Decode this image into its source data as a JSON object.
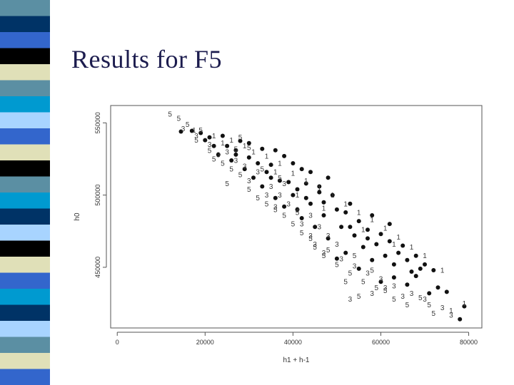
{
  "slide": {
    "title": "Results for F5"
  },
  "colors": {
    "title": "#1c1c4e",
    "stripes": [
      "#5b8fa3",
      "#003366",
      "#3366cc",
      "#000000",
      "#e0e0b8",
      "#009ad0",
      "#a8d4ff"
    ]
  },
  "chart_data": {
    "type": "scatter",
    "title": "",
    "xlabel": "h1 + h-1",
    "ylabel": "h0",
    "xlim": [
      -1500,
      83000
    ],
    "ylim": [
      408000,
      562000
    ],
    "x_ticks": [
      0,
      20000,
      40000,
      60000,
      80000
    ],
    "x_tick_labels": [
      "0",
      "20000",
      "40000",
      "60000",
      "80000"
    ],
    "y_ticks": [
      450000,
      500000,
      550000
    ],
    "y_tick_labels": [
      "450000",
      "500000",
      "550000"
    ],
    "grid": false,
    "legend": "none",
    "series": [
      {
        "marker": "filled-circle",
        "points": [
          [
            14500,
            544000
          ],
          [
            17000,
            544500
          ],
          [
            19000,
            543000
          ],
          [
            21000,
            540000
          ],
          [
            24000,
            541000
          ],
          [
            28000,
            537500
          ],
          [
            27000,
            531000
          ],
          [
            30000,
            536000
          ],
          [
            33000,
            532000
          ],
          [
            36000,
            531000
          ],
          [
            38000,
            527000
          ],
          [
            35000,
            521000
          ],
          [
            40000,
            522000
          ],
          [
            42000,
            518000
          ],
          [
            44000,
            516000
          ],
          [
            48000,
            512000
          ],
          [
            46000,
            506000
          ],
          [
            39000,
            509000
          ],
          [
            41000,
            504000
          ],
          [
            43000,
            498000
          ],
          [
            47000,
            495000
          ],
          [
            50000,
            490000
          ],
          [
            52000,
            488000
          ],
          [
            55000,
            482000
          ],
          [
            53000,
            478000
          ],
          [
            57000,
            476000
          ],
          [
            60000,
            473000
          ],
          [
            62000,
            468000
          ],
          [
            65000,
            465000
          ],
          [
            68000,
            458000
          ],
          [
            70000,
            452000
          ],
          [
            67000,
            447000
          ],
          [
            63000,
            443000
          ],
          [
            58000,
            455000
          ],
          [
            52000,
            460000
          ],
          [
            56000,
            464000
          ],
          [
            61000,
            458000
          ],
          [
            66000,
            455000
          ],
          [
            72000,
            448000
          ],
          [
            48000,
            470000
          ],
          [
            45000,
            478000
          ],
          [
            42000,
            484000
          ],
          [
            38000,
            492000
          ],
          [
            36000,
            498000
          ],
          [
            33000,
            506000
          ],
          [
            31000,
            512000
          ],
          [
            29000,
            518000
          ],
          [
            26000,
            524000
          ],
          [
            23000,
            528000
          ],
          [
            22000,
            534000
          ],
          [
            20000,
            538000
          ],
          [
            34000,
            516000
          ],
          [
            37000,
            510000
          ],
          [
            44000,
            494000
          ],
          [
            47000,
            486000
          ],
          [
            51000,
            478000
          ],
          [
            54000,
            472000
          ],
          [
            59000,
            466000
          ],
          [
            64000,
            460000
          ],
          [
            69000,
            449000
          ],
          [
            75000,
            433000
          ],
          [
            79000,
            423000
          ],
          [
            78000,
            414000
          ],
          [
            71000,
            432000
          ],
          [
            66000,
            438000
          ],
          [
            60000,
            440000
          ],
          [
            55000,
            449000
          ],
          [
            50000,
            456000
          ],
          [
            40000,
            500000
          ],
          [
            35000,
            512000
          ],
          [
            32000,
            522000
          ],
          [
            27000,
            528000
          ],
          [
            25000,
            534000
          ],
          [
            43000,
            508000
          ],
          [
            49000,
            500000
          ],
          [
            53000,
            494000
          ],
          [
            58000,
            486000
          ],
          [
            62000,
            480000
          ],
          [
            46000,
            502000
          ],
          [
            30000,
            526000
          ],
          [
            41000,
            490000
          ],
          [
            57000,
            470000
          ],
          [
            63000,
            452000
          ],
          [
            68000,
            444000
          ],
          [
            73000,
            436000
          ]
        ]
      },
      {
        "marker": "label-1",
        "points": [
          [
            17500,
            545000
          ],
          [
            22000,
            541000
          ],
          [
            26000,
            538000
          ],
          [
            29000,
            534000
          ],
          [
            31000,
            530000
          ],
          [
            34000,
            527000
          ],
          [
            37000,
            522000
          ],
          [
            40000,
            515000
          ],
          [
            43000,
            510000
          ],
          [
            46000,
            505000
          ],
          [
            49000,
            500000
          ],
          [
            52000,
            494000
          ],
          [
            55000,
            488000
          ],
          [
            58000,
            483000
          ],
          [
            61000,
            477000
          ],
          [
            64000,
            471000
          ],
          [
            67000,
            464000
          ],
          [
            70000,
            458000
          ],
          [
            74000,
            448000
          ],
          [
            79000,
            425000
          ],
          [
            76000,
            420000
          ],
          [
            41000,
            500000
          ],
          [
            47000,
            491000
          ],
          [
            56000,
            476000
          ],
          [
            63000,
            466000
          ],
          [
            36000,
            516000
          ],
          [
            24000,
            536000
          ]
        ]
      },
      {
        "marker": "label-3",
        "points": [
          [
            15000,
            546000
          ],
          [
            18000,
            541000
          ],
          [
            21000,
            535000
          ],
          [
            23000,
            528000
          ],
          [
            25000,
            530000
          ],
          [
            27000,
            524000
          ],
          [
            29000,
            520000
          ],
          [
            32000,
            516000
          ],
          [
            30000,
            510000
          ],
          [
            35000,
            506000
          ],
          [
            37000,
            500000
          ],
          [
            39000,
            494000
          ],
          [
            41000,
            490000
          ],
          [
            44000,
            486000
          ],
          [
            46000,
            478000
          ],
          [
            48000,
            472000
          ],
          [
            50000,
            466000
          ],
          [
            47000,
            460000
          ],
          [
            51000,
            456000
          ],
          [
            54000,
            451000
          ],
          [
            57000,
            446000
          ],
          [
            60000,
            442000
          ],
          [
            63000,
            437000
          ],
          [
            65000,
            430000
          ],
          [
            70000,
            428000
          ],
          [
            74000,
            422000
          ],
          [
            76000,
            417000
          ],
          [
            58000,
            432000
          ],
          [
            53000,
            428000
          ],
          [
            36000,
            492000
          ],
          [
            34000,
            500000
          ],
          [
            42000,
            480000
          ],
          [
            45000,
            466000
          ],
          [
            61000,
            436000
          ],
          [
            67000,
            432000
          ],
          [
            38000,
            508000
          ],
          [
            44000,
            472000
          ]
        ]
      },
      {
        "marker": "label-5",
        "points": [
          [
            12000,
            556000
          ],
          [
            14000,
            553000
          ],
          [
            16000,
            549000
          ],
          [
            19000,
            545000
          ],
          [
            21000,
            531000
          ],
          [
            22000,
            525000
          ],
          [
            24000,
            522000
          ],
          [
            26000,
            518000
          ],
          [
            28000,
            514000
          ],
          [
            25000,
            508000
          ],
          [
            30000,
            504000
          ],
          [
            32000,
            498000
          ],
          [
            34000,
            494000
          ],
          [
            36000,
            490000
          ],
          [
            38000,
            486000
          ],
          [
            40000,
            480000
          ],
          [
            42000,
            474000
          ],
          [
            44000,
            470000
          ],
          [
            45000,
            464000
          ],
          [
            47000,
            458000
          ],
          [
            50000,
            452000
          ],
          [
            53000,
            446000
          ],
          [
            56000,
            440000
          ],
          [
            59000,
            436000
          ],
          [
            55000,
            430000
          ],
          [
            63000,
            428000
          ],
          [
            66000,
            424000
          ],
          [
            69000,
            429000
          ],
          [
            72000,
            418000
          ],
          [
            61000,
            434000
          ],
          [
            37000,
            512000
          ],
          [
            33000,
            518000
          ],
          [
            27000,
            532000
          ],
          [
            18000,
            538000
          ],
          [
            41000,
            488000
          ],
          [
            48000,
            462000
          ],
          [
            52000,
            440000
          ],
          [
            58000,
            448000
          ],
          [
            71000,
            424000
          ],
          [
            28000,
            540000
          ],
          [
            54000,
            458000
          ],
          [
            30000,
            533000
          ]
        ]
      }
    ]
  }
}
